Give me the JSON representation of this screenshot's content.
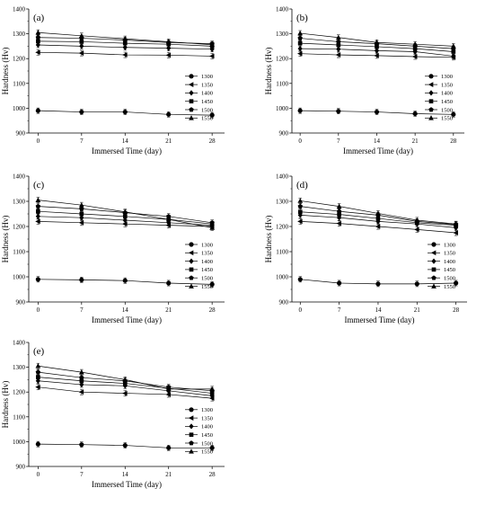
{
  "chart_data": [
    {
      "type": "line",
      "panel_label": "(a)",
      "xlabel": "Immersed Time (day)",
      "ylabel": "Hardness (Hv)",
      "x": [
        0,
        7,
        14,
        21,
        28
      ],
      "xticks": [
        "0",
        "7",
        "14",
        "21",
        "28"
      ],
      "ylim": [
        900,
        1400
      ],
      "yticks": [
        "900",
        "1000",
        "1100",
        "1200",
        "1300",
        "1400"
      ],
      "legend_position": "right",
      "series": [
        {
          "name": "1300",
          "marker": "circle",
          "values": [
            990,
            985,
            985,
            975,
            972
          ]
        },
        {
          "name": "1350",
          "marker": "triangle-left",
          "values": [
            1225,
            1222,
            1215,
            1214,
            1210
          ]
        },
        {
          "name": "1400",
          "marker": "diamond",
          "values": [
            1255,
            1250,
            1245,
            1242,
            1238
          ]
        },
        {
          "name": "1450",
          "marker": "square",
          "values": [
            1270,
            1268,
            1262,
            1258,
            1250
          ]
        },
        {
          "name": "1500",
          "marker": "pentagon",
          "values": [
            1285,
            1282,
            1275,
            1265,
            1260
          ]
        },
        {
          "name": "1550",
          "marker": "triangle-up",
          "values": [
            1305,
            1292,
            1280,
            1268,
            1256
          ]
        }
      ]
    },
    {
      "type": "line",
      "panel_label": "(b)",
      "xlabel": "Immersed Time (day)",
      "ylabel": "Hardness (Hv)",
      "x": [
        0,
        7,
        14,
        21,
        28
      ],
      "xticks": [
        "0",
        "7",
        "14",
        "21",
        "28"
      ],
      "ylim": [
        900,
        1400
      ],
      "yticks": [
        "900",
        "1000",
        "1100",
        "1200",
        "1300",
        "1400"
      ],
      "legend_position": "right",
      "series": [
        {
          "name": "1300",
          "marker": "circle",
          "values": [
            990,
            988,
            985,
            978,
            975
          ]
        },
        {
          "name": "1350",
          "marker": "triangle-left",
          "values": [
            1220,
            1215,
            1212,
            1208,
            1205
          ]
        },
        {
          "name": "1400",
          "marker": "diamond",
          "values": [
            1240,
            1238,
            1232,
            1228,
            1210
          ]
        },
        {
          "name": "1450",
          "marker": "square",
          "values": [
            1262,
            1255,
            1248,
            1240,
            1228
          ]
        },
        {
          "name": "1500",
          "marker": "pentagon",
          "values": [
            1282,
            1268,
            1260,
            1250,
            1240
          ]
        },
        {
          "name": "1550",
          "marker": "triangle-up",
          "values": [
            1302,
            1285,
            1265,
            1258,
            1250
          ]
        }
      ]
    },
    {
      "type": "line",
      "panel_label": "(c)",
      "xlabel": "Immersed Time (day)",
      "ylabel": "Hardness (Hv)",
      "x": [
        0,
        7,
        14,
        21,
        28
      ],
      "xticks": [
        "0",
        "7",
        "14",
        "21",
        "28"
      ],
      "ylim": [
        900,
        1400
      ],
      "yticks": [
        "900",
        "1000",
        "1100",
        "1200",
        "1300",
        "1400"
      ],
      "legend_position": "right",
      "series": [
        {
          "name": "1300",
          "marker": "circle",
          "values": [
            990,
            988,
            985,
            975,
            970
          ]
        },
        {
          "name": "1350",
          "marker": "triangle-left",
          "values": [
            1220,
            1215,
            1210,
            1205,
            1200
          ]
        },
        {
          "name": "1400",
          "marker": "diamond",
          "values": [
            1240,
            1235,
            1225,
            1215,
            1205
          ]
        },
        {
          "name": "1450",
          "marker": "square",
          "values": [
            1260,
            1250,
            1240,
            1228,
            1210
          ]
        },
        {
          "name": "1500",
          "marker": "pentagon",
          "values": [
            1280,
            1270,
            1255,
            1240,
            1215
          ]
        },
        {
          "name": "1550",
          "marker": "triangle-up",
          "values": [
            1305,
            1285,
            1258,
            1228,
            1195
          ]
        }
      ]
    },
    {
      "type": "line",
      "panel_label": "(d)",
      "xlabel": "Immersed Time (day)",
      "ylabel": "Hardness (Hv)",
      "x": [
        0,
        7,
        14,
        21,
        28
      ],
      "xticks": [
        "0",
        "7",
        "14",
        "21",
        "28"
      ],
      "ylim": [
        900,
        1400
      ],
      "yticks": [
        "900",
        "1000",
        "1100",
        "1200",
        "1300",
        "1400"
      ],
      "legend_position": "right",
      "series": [
        {
          "name": "1300",
          "marker": "circle",
          "values": [
            990,
            975,
            972,
            972,
            975
          ]
        },
        {
          "name": "1350",
          "marker": "triangle-left",
          "values": [
            1220,
            1212,
            1200,
            1188,
            1175
          ]
        },
        {
          "name": "1400",
          "marker": "diamond",
          "values": [
            1245,
            1235,
            1220,
            1210,
            1195
          ]
        },
        {
          "name": "1450",
          "marker": "square",
          "values": [
            1258,
            1248,
            1232,
            1215,
            1205
          ]
        },
        {
          "name": "1500",
          "marker": "pentagon",
          "values": [
            1280,
            1260,
            1245,
            1220,
            1208
          ]
        },
        {
          "name": "1550",
          "marker": "triangle-up",
          "values": [
            1302,
            1280,
            1252,
            1225,
            1210
          ]
        }
      ]
    },
    {
      "type": "line",
      "panel_label": "(e)",
      "xlabel": "Immersed Time (day)",
      "ylabel": "Hardness (Hv)",
      "x": [
        0,
        7,
        14,
        21,
        28
      ],
      "xticks": [
        "0",
        "7",
        "14",
        "21",
        "28"
      ],
      "ylim": [
        900,
        1400
      ],
      "yticks": [
        "900",
        "1000",
        "1100",
        "1200",
        "1300",
        "1400"
      ],
      "legend_position": "right",
      "series": [
        {
          "name": "1300",
          "marker": "circle",
          "values": [
            990,
            988,
            985,
            975,
            975
          ]
        },
        {
          "name": "1350",
          "marker": "triangle-left",
          "values": [
            1220,
            1200,
            1195,
            1190,
            1175
          ]
        },
        {
          "name": "1400",
          "marker": "diamond",
          "values": [
            1245,
            1230,
            1225,
            1205,
            1185
          ]
        },
        {
          "name": "1450",
          "marker": "square",
          "values": [
            1260,
            1245,
            1235,
            1215,
            1195
          ]
        },
        {
          "name": "1500",
          "marker": "pentagon",
          "values": [
            1280,
            1258,
            1245,
            1220,
            1205
          ]
        },
        {
          "name": "1550",
          "marker": "triangle-up",
          "values": [
            1305,
            1280,
            1250,
            1212,
            1212
          ]
        }
      ]
    }
  ]
}
